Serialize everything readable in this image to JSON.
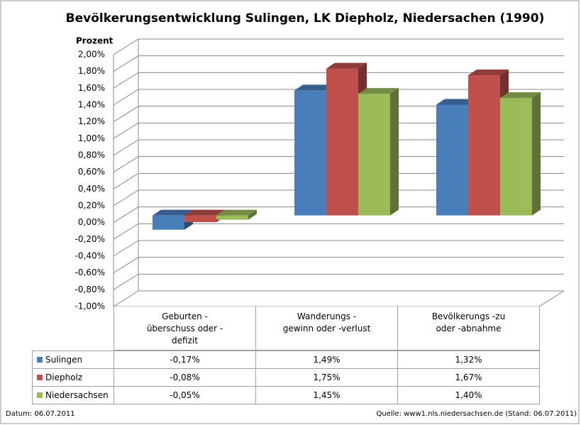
{
  "chart_data": {
    "type": "bar3d",
    "title": "Bevölkerungsentwicklung Sulingen, LK Diepholz, Niedersachen  (1990)",
    "y_axis_label": "Prozent",
    "categories": [
      "Geburten -\nüberschuss oder -\ndefizit",
      "Wanderungs -\ngewinn oder -verlust",
      "Bevölkerungs -zu\noder -abnahme"
    ],
    "series": [
      {
        "name": "Sulingen",
        "color": "#4a7ebb",
        "values": [
          -0.17,
          1.49,
          1.32
        ],
        "value_labels": [
          "-0,17%",
          "1,49%",
          "1,32%"
        ]
      },
      {
        "name": "Diepholz",
        "color": "#c0504d",
        "values": [
          -0.08,
          1.75,
          1.67
        ],
        "value_labels": [
          "-0,08%",
          "1,75%",
          "1,67%"
        ]
      },
      {
        "name": "Niedersachsen",
        "color": "#9bbb59",
        "values": [
          -0.05,
          1.45,
          1.4
        ],
        "value_labels": [
          "-0,05%",
          "1,45%",
          "1,40%"
        ]
      }
    ],
    "ylim": [
      -1,
      2
    ],
    "yticks": [
      {
        "value": 2,
        "label": "2,00%"
      },
      {
        "value": 1.8,
        "label": "1,80%"
      },
      {
        "value": 1.6,
        "label": "1,60%"
      },
      {
        "value": 1.4,
        "label": "1,40%"
      },
      {
        "value": 1.2,
        "label": "1,20%"
      },
      {
        "value": 1,
        "label": "1,00%"
      },
      {
        "value": 0.8,
        "label": "0,80%"
      },
      {
        "value": 0.6,
        "label": "0,60%"
      },
      {
        "value": 0.4,
        "label": "0,40%"
      },
      {
        "value": 0.2,
        "label": "0,20%"
      },
      {
        "value": 0,
        "label": "0,00%"
      },
      {
        "value": -0.2,
        "label": "-0,20%"
      },
      {
        "value": -0.4,
        "label": "-0,40%"
      },
      {
        "value": -0.6,
        "label": "-0,60%"
      },
      {
        "value": -0.8,
        "label": "-0,80%"
      },
      {
        "value": -1,
        "label": "-1,00%"
      }
    ],
    "grid": true,
    "footer_left": "Datum: 06.07.2011",
    "footer_right": "Quelle: www1.nls.niedersachsen.de (Stand: 06.07.2011)"
  }
}
